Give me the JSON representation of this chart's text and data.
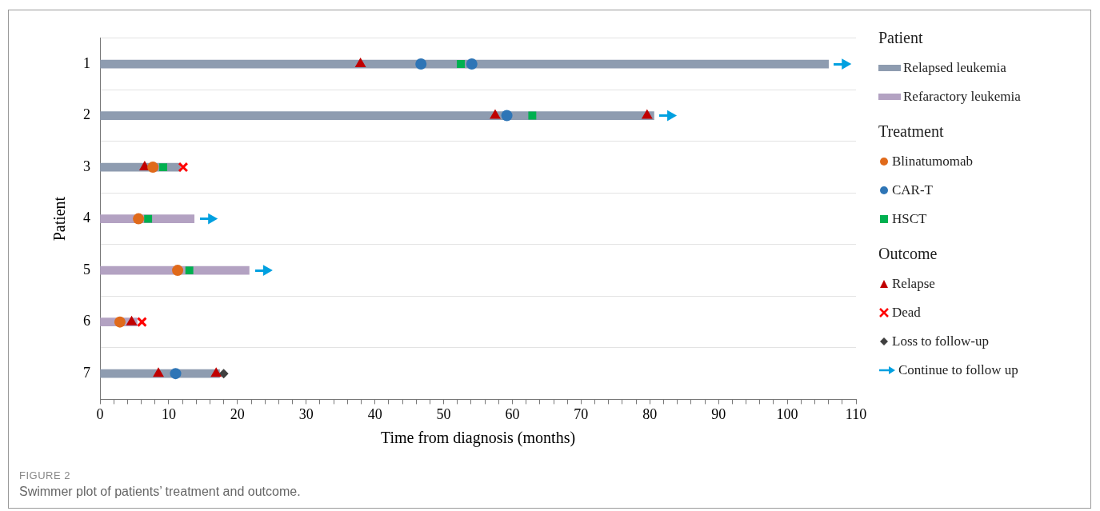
{
  "chart_data": {
    "type": "bar",
    "orientation": "horizontal",
    "title": "Swimmer plot of patients’ treatment and outcome.",
    "xlabel": "Time from diagnosis (months)",
    "ylabel": "Patient",
    "legend_title": "Patient",
    "legend": "right",
    "grid": "y",
    "annotations": [
      "FIGURE 2",
      "Treatment",
      "Outcome"
    ],
    "categories": [
      "1",
      "2",
      "3",
      "4",
      "5",
      "6",
      "7"
    ],
    "xlim": [
      0,
      110
    ],
    "xticks": [
      0,
      {
        "value": 2,
        "label": null
      },
      {
        "value": 4,
        "label": null
      },
      {
        "value": 6,
        "label": null
      },
      {
        "value": 8,
        "label": null
      },
      10,
      {
        "value": 12,
        "label": null
      },
      {
        "value": 14,
        "label": null
      },
      {
        "value": 16,
        "label": null
      },
      {
        "value": 18,
        "label": null
      },
      20,
      {
        "value": 22,
        "label": null
      },
      {
        "value": 24,
        "label": null
      },
      {
        "value": 26,
        "label": null
      },
      {
        "value": 28,
        "label": null
      },
      30,
      {
        "value": 32,
        "label": null
      },
      {
        "value": 34,
        "label": null
      },
      {
        "value": 36,
        "label": null
      },
      {
        "value": 38,
        "label": null
      },
      40,
      {
        "value": 42,
        "label": null
      },
      {
        "value": 44,
        "label": null
      },
      {
        "value": 46,
        "label": null
      },
      {
        "value": 48,
        "label": null
      },
      50,
      {
        "value": 52,
        "label": null
      },
      {
        "value": 54,
        "label": null
      },
      {
        "value": 56,
        "label": null
      },
      {
        "value": 58,
        "label": null
      },
      60,
      {
        "value": 62,
        "label": null
      },
      {
        "value": 64,
        "label": null
      },
      {
        "value": 66,
        "label": null
      },
      {
        "value": 68,
        "label": null
      },
      70,
      {
        "value": 72,
        "label": null
      },
      {
        "value": 74,
        "label": null
      },
      {
        "value": 76,
        "label": null
      },
      {
        "value": 78,
        "label": null
      },
      80,
      {
        "value": 82,
        "label": null
      },
      {
        "value": 84,
        "label": null
      },
      {
        "value": 86,
        "label": null
      },
      {
        "value": 88,
        "label": null
      },
      90,
      {
        "value": 92,
        "label": null
      },
      {
        "value": 94,
        "label": null
      },
      {
        "value": 96,
        "label": null
      },
      {
        "value": 98,
        "label": null
      },
      100,
      {
        "value": 102,
        "label": null
      },
      {
        "value": 104,
        "label": null
      },
      {
        "value": 106,
        "label": null
      },
      {
        "value": 108,
        "label": null
      },
      110
    ],
    "series": [
      {
        "name": "Relapsed leukemia",
        "color": "#8e9cb0",
        "values": [
          106,
          80.6,
          11.7,
          null,
          null,
          null,
          17.4
        ]
      },
      {
        "name": "Refaractory leukemia",
        "color": "#b3a2c2",
        "values": [
          null,
          null,
          null,
          13.7,
          21.7,
          5.4,
          null
        ]
      },
      {
        "name": "Blinatumomab",
        "type": "scatter",
        "marker": "circle",
        "color": "#e06a1b",
        "x": [
          "3",
          "4",
          "5",
          "6"
        ],
        "values": [
          7.7,
          5.6,
          11.3,
          2.9
        ]
      },
      {
        "name": "CAR-T",
        "type": "scatter",
        "marker": "circle",
        "color": "#2e75b6",
        "x": [
          "1",
          "1",
          "2",
          "7"
        ],
        "values": [
          46.7,
          54.1,
          59.2,
          11
        ]
      },
      {
        "name": "HSCT",
        "type": "scatter",
        "marker": "square",
        "color": "#00b050",
        "x": [
          "1",
          "2",
          "3",
          "4",
          "5"
        ],
        "values": [
          52.5,
          62.9,
          9.2,
          7,
          13
        ]
      },
      {
        "name": "Relapse",
        "type": "scatter",
        "marker": "triangle",
        "color": "#c00000",
        "x": [
          "1",
          "2",
          "2",
          "3",
          "6",
          "7",
          "7"
        ],
        "values": [
          37.9,
          57.5,
          79.6,
          6.5,
          4.6,
          8.5,
          16.9
        ]
      },
      {
        "name": "Dead",
        "type": "scatter",
        "marker": "cross",
        "color": "#ff0000",
        "x": [
          "3",
          "6"
        ],
        "values": [
          12.1,
          6.1
        ]
      },
      {
        "name": "Loss to follow-up",
        "type": "scatter",
        "marker": "diamond",
        "color": "#404040",
        "x": [
          "7"
        ],
        "values": [
          18
        ]
      },
      {
        "name": "Continue to follow up",
        "type": "scatter",
        "marker": "triangle",
        "color": "#00a0e0",
        "x": [
          "1",
          "2",
          "4",
          "5"
        ],
        "values": [
          108.4,
          83,
          16.2,
          24.2
        ]
      }
    ]
  }
}
